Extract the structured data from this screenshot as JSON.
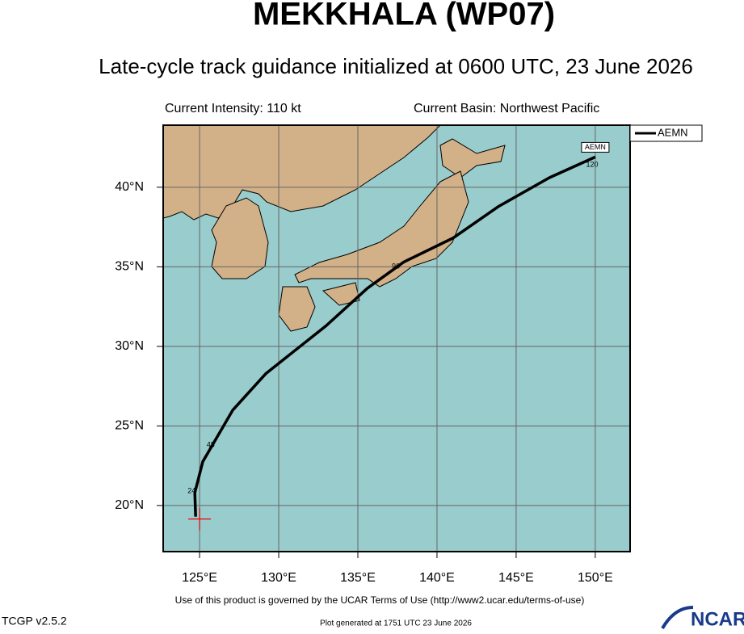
{
  "chart_data": {
    "type": "line",
    "title": "MEKKHALA (WP07)",
    "subtitle": "Late-cycle track guidance initialized at 0600 UTC, 23 June 2026",
    "intensity": "Current Intensity: 110 kt",
    "basin": "Current Basin: Northwest Pacific",
    "xlim": [
      122.7,
      152.2
    ],
    "ylim": [
      17.1,
      43.9
    ],
    "xticks": [
      {
        "value": 125,
        "label": "125°E"
      },
      {
        "value": 130,
        "label": "130°E"
      },
      {
        "value": 135,
        "label": "135°E"
      },
      {
        "value": 140,
        "label": "140°E"
      },
      {
        "value": 145,
        "label": "145°E"
      },
      {
        "value": 150,
        "label": "150°E"
      }
    ],
    "yticks": [
      {
        "value": 20,
        "label": "20°N"
      },
      {
        "value": 25,
        "label": "25°N"
      },
      {
        "value": 30,
        "label": "30°N"
      },
      {
        "value": 35,
        "label": "35°N"
      },
      {
        "value": 40,
        "label": "40°N"
      }
    ],
    "grid": true,
    "series": [
      {
        "name": "AEMN",
        "color": "#000000",
        "x": [
          124.75,
          124.7,
          125.2,
          127.1,
          129.2,
          133.0,
          135.6,
          137.9,
          141.0,
          143.9,
          147.1,
          150.0
        ],
        "values": [
          19.3,
          20.8,
          22.75,
          26.0,
          28.3,
          31.3,
          33.65,
          35.3,
          36.8,
          38.8,
          40.6,
          41.9
        ]
      }
    ],
    "track_labels": [
      {
        "label": "24",
        "x": 124.5,
        "y": 20.9
      },
      {
        "label": "48",
        "x": 125.7,
        "y": 23.8
      },
      {
        "label": "96",
        "x": 137.4,
        "y": 35.0
      },
      {
        "label": "120",
        "x": 149.8,
        "y": 41.4
      }
    ],
    "current_position": {
      "x": 125.0,
      "y": 19.15
    },
    "legend_location": "upper right",
    "terms": "Use of this product is governed by the UCAR Terms of Use (http://www2.ucar.edu/terms-of-use)",
    "version": "TCGP v2.5.2",
    "generated": "Plot generated at 1751 UTC   23 June 2026",
    "logo": "NCAR"
  }
}
